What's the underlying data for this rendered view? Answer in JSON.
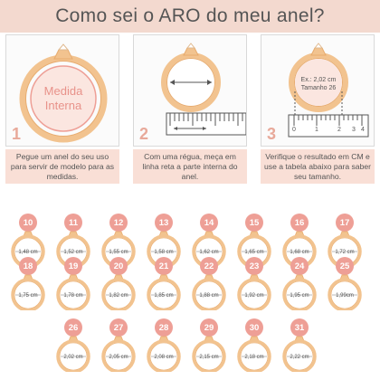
{
  "title": "Como sei o ARO do meu anel?",
  "colors": {
    "accent": "#ee9f96",
    "gold": "#f2c38f",
    "band": "#f3d9cf",
    "inner": "#fbe6e0"
  },
  "steps": [
    {
      "number": "1",
      "inner_label_1": "Medida",
      "inner_label_2": "Interna",
      "caption": "Pegue um anel do seu uso para servir de modelo para as medidas."
    },
    {
      "number": "2",
      "caption": "Com uma régua, meça em linha reta a parte interna do anel."
    },
    {
      "number": "3",
      "example_line_1": "Ex.: 2,02 cm",
      "example_line_2": "Tamanho 26",
      "ruler_labels": [
        "0",
        "1",
        "2",
        "3",
        "4"
      ],
      "caption": "Verifique o resultado em CM e use a tabela abaixo para saber seu tamanho."
    }
  ],
  "sizes": [
    {
      "aro": "10",
      "cm": "1,48 cm"
    },
    {
      "aro": "11",
      "cm": "1,52 cm"
    },
    {
      "aro": "12",
      "cm": "1,55 cm"
    },
    {
      "aro": "13",
      "cm": "1,58 cm"
    },
    {
      "aro": "14",
      "cm": "1,62 cm"
    },
    {
      "aro": "15",
      "cm": "1,65 cm"
    },
    {
      "aro": "16",
      "cm": "1,68 cm"
    },
    {
      "aro": "17",
      "cm": "1,72 cm"
    },
    {
      "aro": "18",
      "cm": "1,75 cm"
    },
    {
      "aro": "19",
      "cm": "1,78 cm"
    },
    {
      "aro": "20",
      "cm": "1,82 cm"
    },
    {
      "aro": "21",
      "cm": "1,85 cm"
    },
    {
      "aro": "22",
      "cm": "1,88 cm"
    },
    {
      "aro": "23",
      "cm": "1,92 cm"
    },
    {
      "aro": "24",
      "cm": "1,95 cm"
    },
    {
      "aro": "25",
      "cm": "1,99cm"
    },
    {
      "aro": "26",
      "cm": "2,02 cm"
    },
    {
      "aro": "27",
      "cm": "2,05 cm"
    },
    {
      "aro": "28",
      "cm": "2,08 cm"
    },
    {
      "aro": "29",
      "cm": "2,15 cm"
    },
    {
      "aro": "30",
      "cm": "2,18 cm"
    },
    {
      "aro": "31",
      "cm": "2,22 cm"
    }
  ]
}
